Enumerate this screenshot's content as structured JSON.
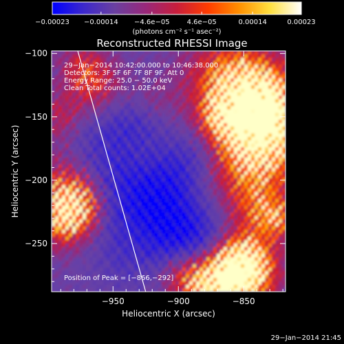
{
  "chart_data": {
    "type": "heatmap",
    "title": "Reconstructed RHESSI Image",
    "xlabel": "Heliocentric X (arcsec)",
    "ylabel": "Heliocentric Y (arcsec)",
    "xlim": [
      -997,
      -818
    ],
    "ylim": [
      -288,
      -98
    ],
    "x_ticks": [
      -950,
      -900,
      -850
    ],
    "x_tick_labels": [
      "−950",
      "−900",
      "−850"
    ],
    "y_ticks": [
      -100,
      -150,
      -200,
      -250
    ],
    "y_tick_labels": [
      "−100",
      "−150",
      "−200",
      "−250"
    ],
    "colorbar": {
      "range": [
        -0.00023,
        0.00023
      ],
      "ticks": [
        -0.00023,
        -0.00014,
        -4.6e-05,
        4.6e-05,
        0.00014,
        0.00023
      ],
      "tick_labels": [
        "−0.00023",
        "−0.00014",
        "−4.6e−05",
        "4.6e−05",
        "0.00014",
        "0.00023"
      ],
      "unit_label": "(photons cm⁻² s⁻¹ asec⁻²)",
      "colormap": [
        "#0000ff",
        "#3c28cc",
        "#6a40a0",
        "#98287a",
        "#c81e3c",
        "#ff3c00",
        "#ff9000",
        "#ffe040",
        "#ffffff"
      ]
    },
    "annotations": {
      "time_range": "29−Jan−2014 10:42:00.000 to 10:46:38.000",
      "detectors": "Detectors: 3F 5F 6F 7F 8F 9F, Att 0",
      "energy_range": "Energy Range: 25.0 − 50.0 keV",
      "clean_counts": "Clean   Total counts: 1.02E+04",
      "peak_position": "Position of Peak = [−866,−292]"
    },
    "peak": [
      -866,
      -292
    ],
    "limb_line": [
      [
        -977,
        -98
      ],
      [
        -925,
        -288
      ]
    ],
    "footer_timestamp": "29−Jan−2014 21:45"
  }
}
